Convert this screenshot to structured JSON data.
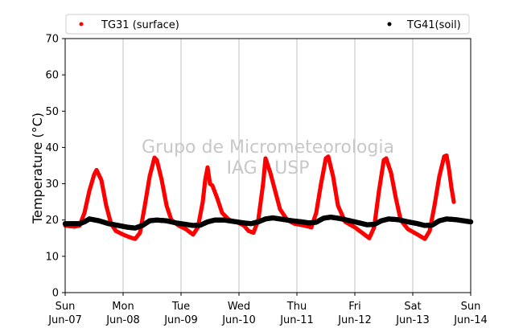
{
  "chart_data": {
    "type": "scatter",
    "title": "",
    "ylabel": "Temperature (°C)",
    "xlabel": "",
    "ylim": [
      0,
      70
    ],
    "yticks": [
      0,
      10,
      20,
      30,
      40,
      50,
      60,
      70
    ],
    "xlim": [
      "2014-06-07T00:00",
      "2014-06-14T00:00"
    ],
    "xticks": [
      {
        "day": "Sun",
        "date": "Jun-07"
      },
      {
        "day": "Mon",
        "date": "Jun-08"
      },
      {
        "day": "Tue",
        "date": "Jun-09"
      },
      {
        "day": "Wed",
        "date": "Jun-10"
      },
      {
        "day": "Thu",
        "date": "Jun-11"
      },
      {
        "day": "Fri",
        "date": "Jun-12"
      },
      {
        "day": "Sat",
        "date": "Jun-13"
      },
      {
        "day": "Sun",
        "date": "Jun-14"
      }
    ],
    "grid": "vertical",
    "legend_position": "top",
    "watermark": [
      "Grupo de Micrometeorologia",
      "IAG / USP"
    ],
    "series": [
      {
        "name": "TG31 (surface)",
        "color": "#ff0000",
        "points": [
          [
            "2014-06-07T00:00",
            18.5
          ],
          [
            "2014-06-07T02:00",
            18.3
          ],
          [
            "2014-06-07T04:00",
            18.2
          ],
          [
            "2014-06-07T06:00",
            18.5
          ],
          [
            "2014-06-07T08:00",
            22.0
          ],
          [
            "2014-06-07T10:00",
            28.0
          ],
          [
            "2014-06-07T12:00",
            32.5
          ],
          [
            "2014-06-07T13:00",
            33.8
          ],
          [
            "2014-06-07T15:00",
            31.0
          ],
          [
            "2014-06-07T17:00",
            24.0
          ],
          [
            "2014-06-07T19:00",
            19.0
          ],
          [
            "2014-06-07T21:00",
            17.0
          ],
          [
            "2014-06-08T00:00",
            16.0
          ],
          [
            "2014-06-08T03:00",
            15.2
          ],
          [
            "2014-06-08T05:00",
            14.8
          ],
          [
            "2014-06-08T07:00",
            16.5
          ],
          [
            "2014-06-08T09:00",
            24.0
          ],
          [
            "2014-06-08T11:00",
            32.0
          ],
          [
            "2014-06-08T13:00",
            37.2
          ],
          [
            "2014-06-08T14:00",
            36.5
          ],
          [
            "2014-06-08T16:00",
            31.0
          ],
          [
            "2014-06-08T18:00",
            24.0
          ],
          [
            "2014-06-08T20:00",
            20.0
          ],
          [
            "2014-06-08T23:00",
            18.5
          ],
          [
            "2014-06-09T02:00",
            17.5
          ],
          [
            "2014-06-09T05:00",
            16.0
          ],
          [
            "2014-06-09T07:00",
            18.0
          ],
          [
            "2014-06-09T09:00",
            25.0
          ],
          [
            "2014-06-09T10:00",
            31.0
          ],
          [
            "2014-06-09T11:00",
            34.5
          ],
          [
            "2014-06-09T12:00",
            30.0
          ],
          [
            "2014-06-09T13:00",
            29.5
          ],
          [
            "2014-06-09T15:00",
            26.0
          ],
          [
            "2014-06-09T17:00",
            22.0
          ],
          [
            "2014-06-09T20:00",
            20.0
          ],
          [
            "2014-06-09T23:00",
            19.5
          ],
          [
            "2014-06-10T02:00",
            18.5
          ],
          [
            "2014-06-10T04:00",
            17.0
          ],
          [
            "2014-06-10T06:00",
            16.5
          ],
          [
            "2014-06-10T08:00",
            20.0
          ],
          [
            "2014-06-10T10:00",
            30.0
          ],
          [
            "2014-06-10T11:00",
            37.0
          ],
          [
            "2014-06-10T13:00",
            33.0
          ],
          [
            "2014-06-10T15:00",
            28.0
          ],
          [
            "2014-06-10T17:00",
            23.0
          ],
          [
            "2014-06-10T20:00",
            20.0
          ],
          [
            "2014-06-10T23:00",
            19.0
          ],
          [
            "2014-06-11T03:00",
            18.5
          ],
          [
            "2014-06-11T06:00",
            18.0
          ],
          [
            "2014-06-11T08:00",
            22.0
          ],
          [
            "2014-06-11T10:00",
            30.0
          ],
          [
            "2014-06-11T12:00",
            37.0
          ],
          [
            "2014-06-11T13:00",
            37.5
          ],
          [
            "2014-06-11T15:00",
            32.0
          ],
          [
            "2014-06-11T17:00",
            24.0
          ],
          [
            "2014-06-11T20:00",
            19.5
          ],
          [
            "2014-06-12T00:00",
            18.0
          ],
          [
            "2014-06-12T03:00",
            16.5
          ],
          [
            "2014-06-12T06:00",
            15.0
          ],
          [
            "2014-06-12T08:00",
            18.0
          ],
          [
            "2014-06-12T10:00",
            28.0
          ],
          [
            "2014-06-12T12:00",
            36.5
          ],
          [
            "2014-06-12T13:00",
            37.0
          ],
          [
            "2014-06-12T15:00",
            33.0
          ],
          [
            "2014-06-12T17:00",
            26.0
          ],
          [
            "2014-06-12T19:00",
            20.0
          ],
          [
            "2014-06-12T22:00",
            17.5
          ],
          [
            "2014-06-13T02:00",
            16.0
          ],
          [
            "2014-06-13T05:00",
            14.8
          ],
          [
            "2014-06-13T07:00",
            17.0
          ],
          [
            "2014-06-13T09:00",
            24.0
          ],
          [
            "2014-06-13T11:00",
            32.0
          ],
          [
            "2014-06-13T13:00",
            37.5
          ],
          [
            "2014-06-13T14:00",
            37.8
          ],
          [
            "2014-06-13T15:00",
            34.0
          ],
          [
            "2014-06-13T16:00",
            29.0
          ],
          [
            "2014-06-13T17:00",
            25.0
          ]
        ]
      },
      {
        "name": "TG41(soil)",
        "color": "#000000",
        "points": [
          [
            "2014-06-07T00:00",
            19.0
          ],
          [
            "2014-06-07T03:00",
            19.0
          ],
          [
            "2014-06-07T06:00",
            19.0
          ],
          [
            "2014-06-07T08:00",
            19.5
          ],
          [
            "2014-06-07T10:00",
            20.3
          ],
          [
            "2014-06-07T14:00",
            19.8
          ],
          [
            "2014-06-07T18:00",
            19.0
          ],
          [
            "2014-06-07T22:00",
            18.5
          ],
          [
            "2014-06-08T02:00",
            18.0
          ],
          [
            "2014-06-08T05:00",
            17.8
          ],
          [
            "2014-06-08T08:00",
            18.5
          ],
          [
            "2014-06-08T11:00",
            19.8
          ],
          [
            "2014-06-08T14:00",
            20.0
          ],
          [
            "2014-06-08T18:00",
            19.8
          ],
          [
            "2014-06-08T22:00",
            19.2
          ],
          [
            "2014-06-09T02:00",
            18.8
          ],
          [
            "2014-06-09T05:00",
            18.5
          ],
          [
            "2014-06-09T08:00",
            18.6
          ],
          [
            "2014-06-09T11:00",
            19.5
          ],
          [
            "2014-06-09T14:00",
            20.0
          ],
          [
            "2014-06-09T18:00",
            20.0
          ],
          [
            "2014-06-09T22:00",
            19.6
          ],
          [
            "2014-06-10T02:00",
            19.2
          ],
          [
            "2014-06-10T05:00",
            19.0
          ],
          [
            "2014-06-10T08:00",
            19.5
          ],
          [
            "2014-06-10T11:00",
            20.3
          ],
          [
            "2014-06-10T14:00",
            20.6
          ],
          [
            "2014-06-10T18:00",
            20.2
          ],
          [
            "2014-06-10T22:00",
            19.8
          ],
          [
            "2014-06-11T02:00",
            19.5
          ],
          [
            "2014-06-11T05:00",
            19.2
          ],
          [
            "2014-06-11T08:00",
            19.4
          ],
          [
            "2014-06-11T11:00",
            20.5
          ],
          [
            "2014-06-11T14:00",
            20.8
          ],
          [
            "2014-06-11T18:00",
            20.4
          ],
          [
            "2014-06-11T22:00",
            19.8
          ],
          [
            "2014-06-12T02:00",
            19.2
          ],
          [
            "2014-06-12T05:00",
            18.7
          ],
          [
            "2014-06-12T08:00",
            18.8
          ],
          [
            "2014-06-12T11:00",
            19.8
          ],
          [
            "2014-06-12T14:00",
            20.3
          ],
          [
            "2014-06-12T18:00",
            20.1
          ],
          [
            "2014-06-12T22:00",
            19.5
          ],
          [
            "2014-06-13T02:00",
            19.0
          ],
          [
            "2014-06-13T05:00",
            18.5
          ],
          [
            "2014-06-13T08:00",
            18.6
          ],
          [
            "2014-06-13T11:00",
            19.8
          ],
          [
            "2014-06-13T14:00",
            20.3
          ],
          [
            "2014-06-13T18:00",
            20.1
          ],
          [
            "2014-06-13T22:00",
            19.7
          ],
          [
            "2014-06-14T00:00",
            19.5
          ]
        ]
      }
    ]
  }
}
